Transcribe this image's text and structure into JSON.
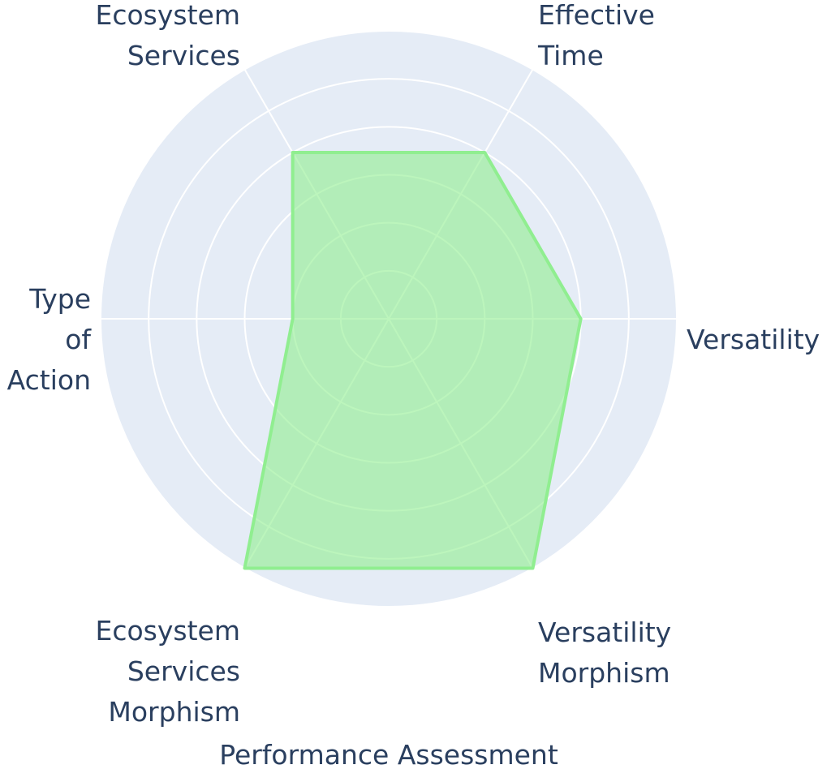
{
  "chart_data": {
    "type": "radar",
    "title": "Performance Assessment",
    "categories": [
      "Versatility",
      "Effective Time",
      "Ecosystem Services",
      "Type of Action",
      "Ecosystem Services Morphism",
      "Versatility Morphism"
    ],
    "values": [
      4,
      4,
      4,
      2,
      6,
      6
    ],
    "color": "#90ee90",
    "rlim": [
      0,
      6
    ],
    "rticks": [
      1,
      2,
      3,
      4,
      5,
      6
    ],
    "grid": true
  }
}
